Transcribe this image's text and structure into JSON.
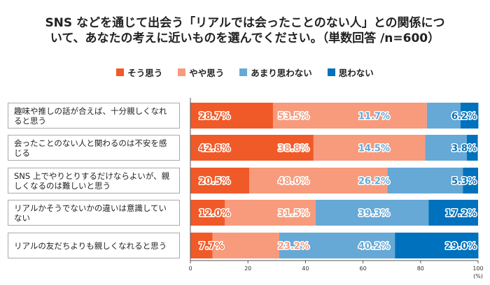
{
  "chart_data": {
    "type": "bar",
    "orientation": "horizontal",
    "stacked": true,
    "title_lines": [
      "SNS などを通じて出会う「リアルでは会ったことのない人」との関係につ",
      "いて、あなたの考えに近いものを選んでください。（単数回答 /n=600）"
    ],
    "categories": [
      "趣味や推しの話が合えば、十分親しくなれると思う",
      "会ったことのない人と関わるのは不安を感じる",
      "SNS 上でやりとりするだけならよいが、親しくなるのは難しいと思う",
      "リアルかそうでないかの違いは意識していない",
      "リアルの友だちよりも親しくなれると思う"
    ],
    "series": [
      {
        "name": "そう思う",
        "color": "#f05a28",
        "values": [
          28.7,
          42.8,
          20.5,
          12.0,
          7.7
        ]
      },
      {
        "name": "やや思う",
        "color": "#f79b7c",
        "values": [
          53.5,
          38.8,
          48.0,
          31.5,
          23.2
        ]
      },
      {
        "name": "あまり思わない",
        "color": "#66a8d6",
        "values": [
          11.7,
          14.5,
          26.2,
          39.3,
          40.2
        ]
      },
      {
        "name": "思わない",
        "color": "#0071bc",
        "values": [
          6.2,
          3.8,
          5.3,
          17.2,
          29.0
        ]
      }
    ],
    "xlim": [
      0,
      100
    ],
    "xticks": [
      "0",
      "20",
      "40",
      "60",
      "80",
      "100"
    ],
    "xunit": "(%)",
    "legend_position": "top",
    "grid": false
  }
}
